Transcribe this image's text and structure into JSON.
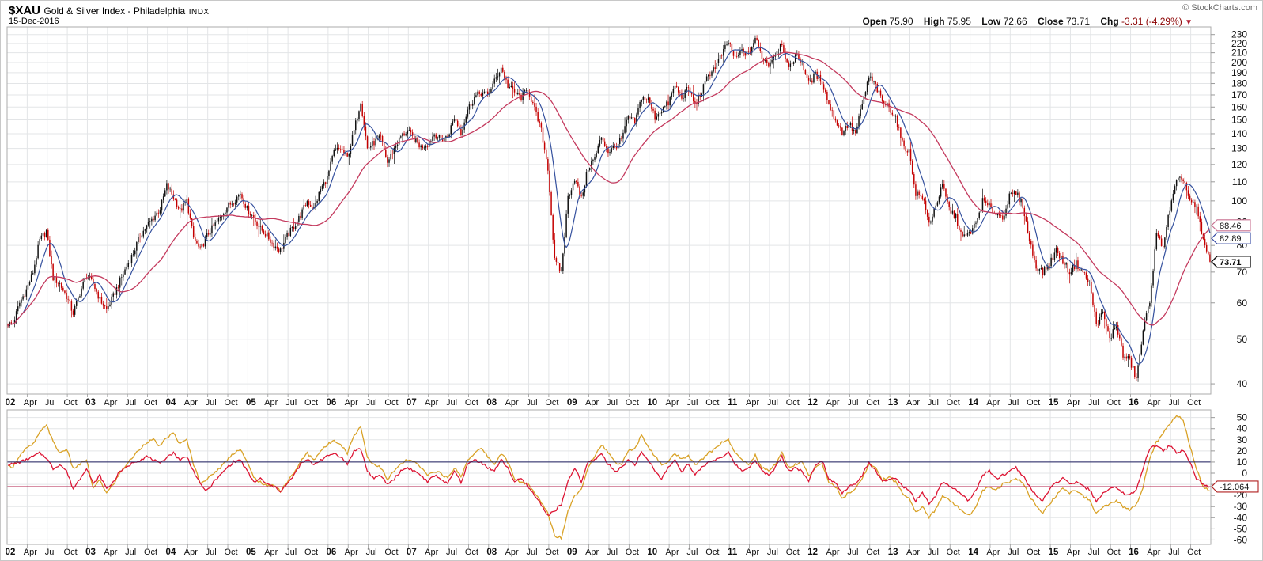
{
  "header": {
    "symbol": "$XAU",
    "title": "Gold & Silver Index - Philadelphia",
    "exchange": "INDX",
    "date": "15-Dec-2016",
    "copyright": "© StockCharts.com"
  },
  "quote": {
    "open_label": "Open",
    "open": "75.90",
    "high_label": "High",
    "high": "75.95",
    "low_label": "Low",
    "low": "72.66",
    "close_label": "Close",
    "close": "73.71",
    "chg_label": "Chg",
    "chg": "-3.31 (-4.29%)",
    "chg_arrow": "▼"
  },
  "colors": {
    "candle_up": "#111111",
    "candle_down": "#c40000",
    "ma_short": "#35519e",
    "ma_long": "#c43a5e",
    "osc_gold": "#d9a227",
    "osc_red": "#dd1534",
    "hline_upper": "#1b1b5e",
    "hline_lower": "#b01c48",
    "grid": "#e3e5e7",
    "border": "#ababab",
    "tick": "#999999",
    "text": "#111111"
  },
  "chart_data": [
    {
      "type": "candlestick",
      "title": "$XAU daily price, log scale, with short (blue) and long (red) moving averages",
      "x_start": "2002-01",
      "x_end": "2016-12",
      "x_years": [
        "02",
        "03",
        "04",
        "05",
        "06",
        "07",
        "08",
        "09",
        "10",
        "11",
        "12",
        "13",
        "14",
        "15",
        "16"
      ],
      "x_quarter_labels": [
        "Apr",
        "Jul",
        "Oct"
      ],
      "y_scale": "log",
      "y_ticks": [
        230,
        220,
        210,
        200,
        190,
        180,
        170,
        160,
        150,
        140,
        130,
        120,
        110,
        100,
        90,
        80,
        70,
        60,
        50,
        40
      ],
      "ylim": [
        38,
        234
      ],
      "monthly_close": [
        54,
        60,
        64,
        70,
        82,
        86,
        68,
        66,
        62,
        57,
        63,
        69,
        66,
        61,
        58,
        62,
        67,
        72,
        77,
        84,
        88,
        92,
        96,
        108,
        102,
        95,
        100,
        83,
        78,
        84,
        88,
        92,
        97,
        100,
        104,
        96,
        92,
        87,
        84,
        80,
        78,
        84,
        88,
        93,
        100,
        96,
        106,
        112,
        128,
        130,
        124,
        142,
        165,
        130,
        134,
        137,
        121,
        130,
        138,
        142,
        136,
        131,
        133,
        140,
        136,
        138,
        152,
        141,
        158,
        168,
        172,
        170,
        182,
        195,
        178,
        172,
        168,
        175,
        158,
        142,
        118,
        74,
        70,
        102,
        112,
        101,
        118,
        124,
        138,
        128,
        131,
        136,
        152,
        148,
        168,
        166,
        152,
        158,
        163,
        178,
        168,
        176,
        162,
        173,
        188,
        196,
        208,
        222,
        203,
        212,
        208,
        226,
        206,
        198,
        210,
        221,
        192,
        208,
        200,
        180,
        188,
        182,
        162,
        150,
        141,
        147,
        140,
        162,
        186,
        178,
        164,
        160,
        152,
        133,
        128,
        104,
        102,
        89,
        98,
        108,
        96,
        92,
        83,
        85,
        89,
        100,
        97,
        94,
        92,
        102,
        104,
        98,
        82,
        72,
        70,
        73,
        78,
        74,
        70,
        73,
        70,
        66,
        54,
        57,
        50,
        54,
        46,
        45,
        41,
        52,
        61,
        84,
        80,
        96,
        110,
        112,
        100,
        96,
        82,
        73.71
      ],
      "price_labels": [
        {
          "text": "88.46",
          "value": 88.46,
          "series": "ma_long"
        },
        {
          "text": "82.89",
          "value": 82.89,
          "series": "ma_short"
        },
        {
          "text": "73.71",
          "value": 73.71,
          "series": "close",
          "bold": true
        }
      ]
    },
    {
      "type": "line",
      "title": "Lower oscillator panel (two rate-of-change style lines)",
      "y_ticks": [
        50,
        40,
        30,
        20,
        10,
        0,
        -10,
        -20,
        -30,
        -40,
        -50,
        -60
      ],
      "ylim": [
        -64,
        57
      ],
      "hlines": [
        {
          "value": 10,
          "color_key": "hline_upper"
        },
        {
          "value": -12.064,
          "color_key": "hline_lower"
        }
      ],
      "last_value_label": {
        "text": "-12.064",
        "value": -12.064
      },
      "series": [
        {
          "name": "gold-oscillator",
          "color_key": "osc_gold",
          "monthly_values": [
            6,
            16,
            22,
            26,
            36,
            44,
            28,
            18,
            22,
            4,
            8,
            12,
            -14,
            -6,
            -18,
            -10,
            0,
            8,
            15,
            22,
            28,
            30,
            24,
            32,
            36,
            26,
            30,
            8,
            -8,
            -6,
            0,
            5,
            12,
            18,
            22,
            10,
            -4,
            -8,
            -12,
            -10,
            -16,
            -8,
            0,
            10,
            18,
            12,
            20,
            25,
            30,
            26,
            18,
            34,
            42,
            14,
            8,
            5,
            -6,
            2,
            8,
            12,
            10,
            5,
            -2,
            2,
            0,
            -5,
            5,
            -3,
            12,
            18,
            22,
            15,
            8,
            18,
            10,
            -5,
            -8,
            -10,
            -18,
            -26,
            -36,
            -56,
            -58,
            -34,
            -20,
            -14,
            6,
            15,
            26,
            18,
            10,
            8,
            20,
            22,
            34,
            24,
            15,
            8,
            10,
            18,
            12,
            15,
            8,
            12,
            18,
            22,
            28,
            30,
            18,
            12,
            8,
            16,
            5,
            2,
            8,
            18,
            5,
            8,
            10,
            -2,
            5,
            8,
            -8,
            -12,
            -22,
            -18,
            -14,
            -5,
            8,
            5,
            -6,
            -3,
            -8,
            -18,
            -22,
            -35,
            -30,
            -40,
            -32,
            -20,
            -25,
            -28,
            -34,
            -38,
            -30,
            -15,
            -12,
            -15,
            -10,
            -8,
            -5,
            -8,
            -20,
            -30,
            -36,
            -28,
            -20,
            -14,
            -18,
            -15,
            -20,
            -25,
            -36,
            -30,
            -28,
            -25,
            -30,
            -33,
            -28,
            -12,
            14,
            28,
            36,
            44,
            52,
            48,
            24,
            4,
            -12,
            -16
          ]
        },
        {
          "name": "red-oscillator",
          "color_key": "osc_red",
          "monthly_values": [
            8,
            10,
            12,
            15,
            18,
            14,
            4,
            8,
            2,
            -14,
            -5,
            5,
            -10,
            -2,
            -14,
            -8,
            2,
            5,
            10,
            12,
            15,
            12,
            8,
            15,
            18,
            12,
            15,
            2,
            -10,
            -16,
            -8,
            -2,
            5,
            10,
            12,
            2,
            -8,
            -5,
            -10,
            -12,
            -16,
            -10,
            -2,
            8,
            12,
            8,
            12,
            15,
            18,
            15,
            8,
            20,
            22,
            2,
            -5,
            -2,
            -10,
            -5,
            2,
            5,
            2,
            -2,
            -8,
            -2,
            -5,
            -10,
            2,
            -8,
            8,
            12,
            10,
            5,
            2,
            12,
            5,
            -8,
            -5,
            -12,
            -20,
            -28,
            -38,
            -34,
            -28,
            -8,
            5,
            -8,
            10,
            12,
            18,
            8,
            2,
            5,
            12,
            8,
            18,
            12,
            2,
            -5,
            5,
            12,
            2,
            8,
            -2,
            5,
            10,
            12,
            15,
            18,
            8,
            2,
            5,
            12,
            2,
            -2,
            5,
            15,
            2,
            5,
            2,
            -8,
            8,
            12,
            -5,
            -8,
            -18,
            -12,
            -10,
            -2,
            10,
            2,
            -8,
            -5,
            -5,
            -12,
            -15,
            -25,
            -18,
            -28,
            -20,
            -8,
            -12,
            -15,
            -20,
            -25,
            -15,
            -2,
            2,
            -5,
            -2,
            2,
            5,
            -2,
            -12,
            -20,
            -25,
            -15,
            -8,
            -5,
            -10,
            -8,
            -12,
            -15,
            -25,
            -18,
            -15,
            -12,
            -18,
            -20,
            -15,
            5,
            22,
            25,
            20,
            25,
            18,
            21,
            10,
            -5,
            -10,
            -12.064
          ]
        }
      ]
    }
  ]
}
